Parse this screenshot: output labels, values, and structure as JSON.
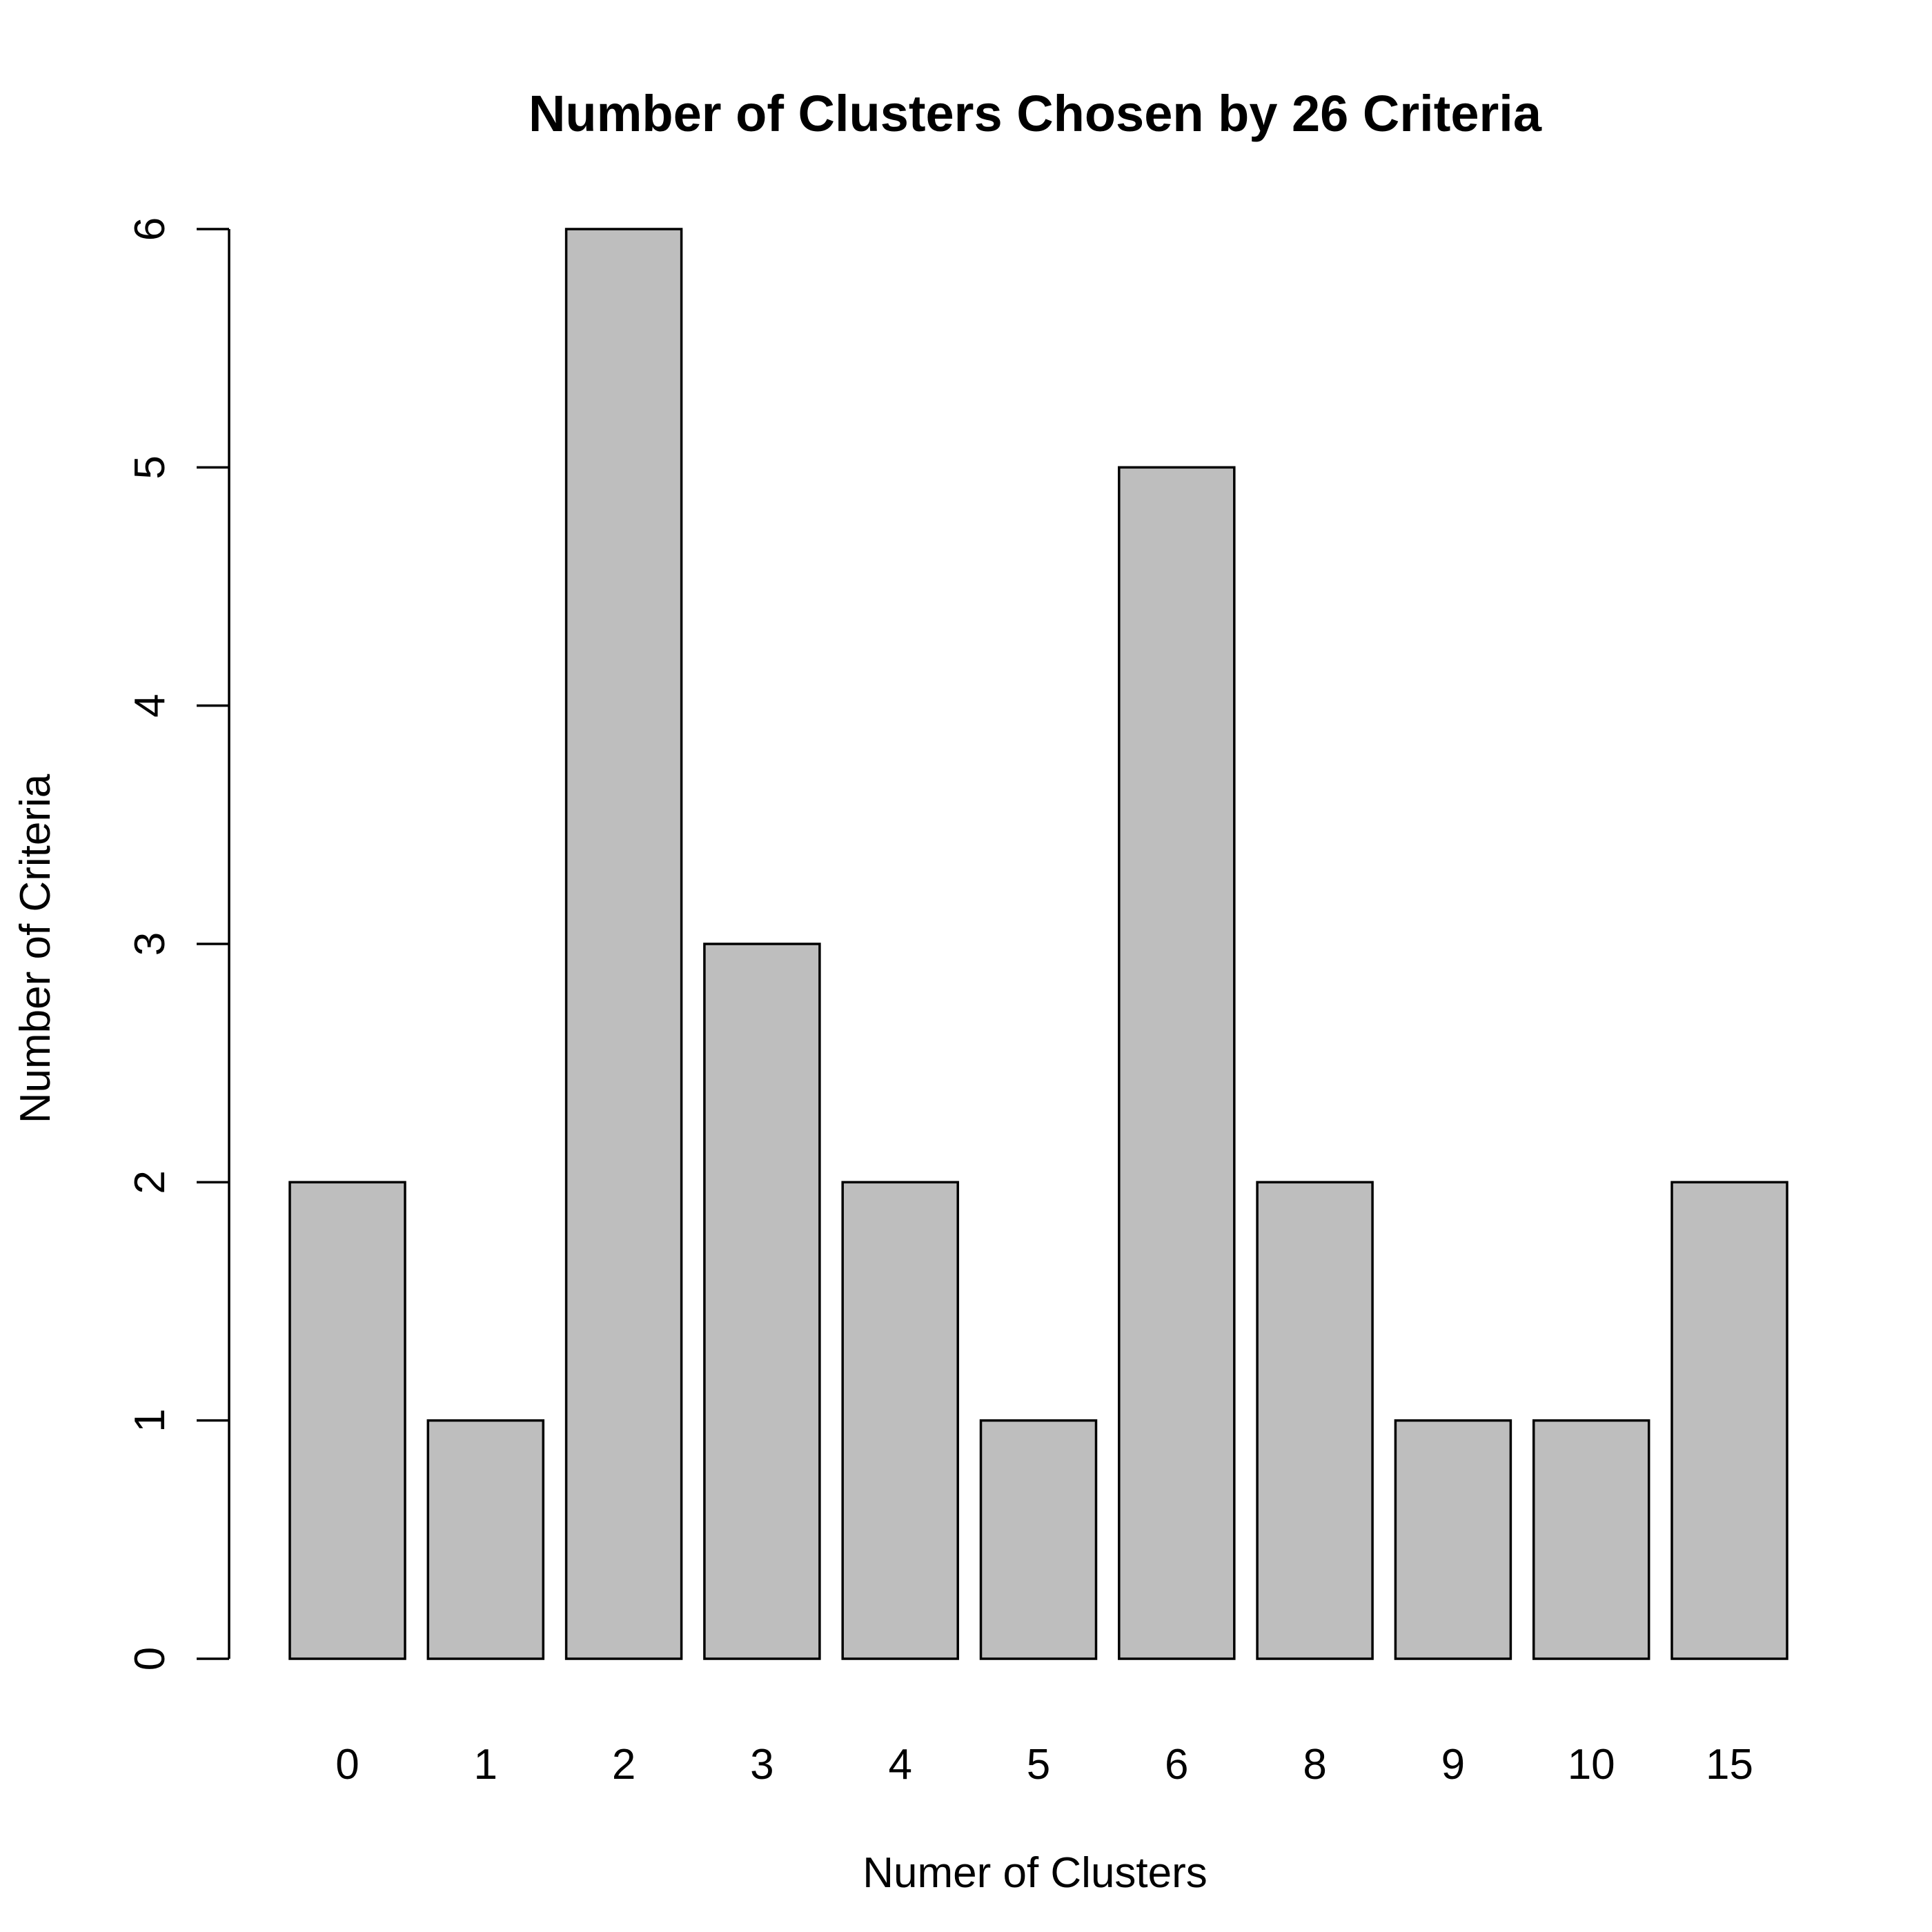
{
  "chart_data": {
    "type": "bar",
    "title": "Number of Clusters Chosen by 26 Criteria",
    "xlabel": "Numer of Clusters",
    "ylabel": "Number of Criteria",
    "categories": [
      "0",
      "1",
      "2",
      "3",
      "4",
      "5",
      "6",
      "8",
      "9",
      "10",
      "15"
    ],
    "values": [
      2,
      1,
      6,
      3,
      2,
      1,
      5,
      2,
      1,
      1,
      2
    ],
    "ylim": [
      0,
      6
    ],
    "yticks": [
      "0",
      "1",
      "2",
      "3",
      "4",
      "5",
      "6"
    ],
    "grid": false,
    "legend": "none",
    "bar_color": "#bebebe",
    "bar_border_color": "#000000"
  }
}
